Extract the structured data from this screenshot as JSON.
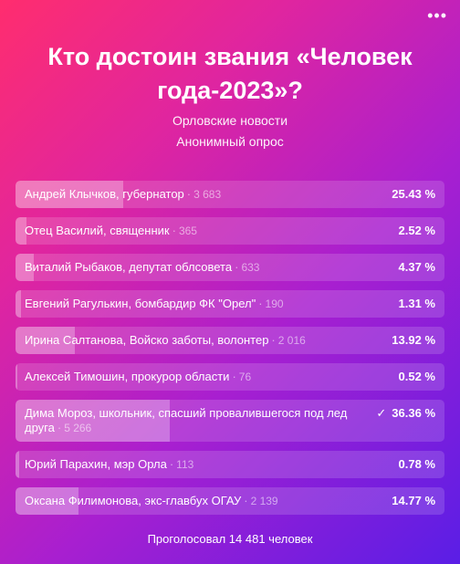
{
  "poll": {
    "title": "Кто достоин звания «Человек года-2023»?",
    "author": "Орловские новости",
    "type": "Анонимный опрос",
    "options": [
      {
        "label": "Андрей Клычков, губернатор",
        "count": "3 683",
        "percent": "25.43 %",
        "share": 25.43
      },
      {
        "label": "Отец Василий, священник",
        "count": "365",
        "percent": "2.52 %",
        "share": 2.52
      },
      {
        "label": "Виталий Рыбаков, депутат облсовета",
        "count": "633",
        "percent": "4.37 %",
        "share": 4.37
      },
      {
        "label": "Евгений Рагулькин, бомбардир ФК \"Орел\"",
        "count": "190",
        "percent": "1.31 %",
        "share": 1.31
      },
      {
        "label": "Ирина Салтанова, Войско заботы, волонтер",
        "count": "2 016",
        "percent": "13.92 %",
        "share": 13.92
      },
      {
        "label": "Алексей Тимошин, прокурор области",
        "count": "76",
        "percent": "0.52 %",
        "share": 0.52
      },
      {
        "label": "Дима Мороз, школьник, спасший провалившегося под лед друга",
        "count": "5 266",
        "percent": "36.36 %",
        "share": 36.36,
        "checked": true,
        "check_icon": "check-icon"
      },
      {
        "label": "Юрий Парахин, мэр Орла",
        "count": "113",
        "percent": "0.78 %",
        "share": 0.78
      },
      {
        "label": "Оксана Филимонова, экс-главбух ОГАУ",
        "count": "2 139",
        "percent": "14.77 %",
        "share": 14.77
      }
    ],
    "footer": "Проголосовал 14 481 человек"
  },
  "icons": {
    "menu": "more-dots-icon"
  }
}
